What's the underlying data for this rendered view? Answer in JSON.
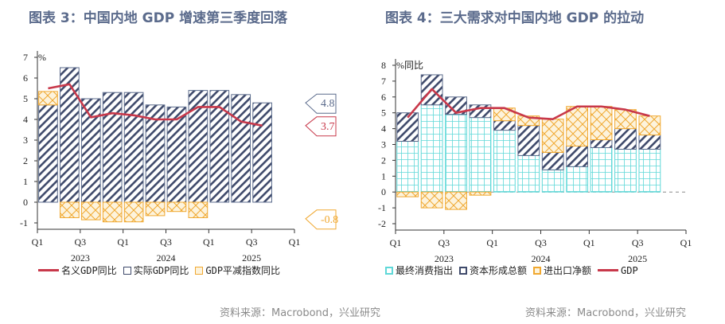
{
  "titles": {
    "left": "图表 3：中国内地 GDP 增速第三季度回落",
    "right": "图表 4：三大需求对中国内地 GDP 的拉动"
  },
  "sources": {
    "left": "资料来源：Macrobond，兴业研究",
    "right": "资料来源：Macrobond，兴业研究"
  },
  "colors": {
    "line": "#c8384a",
    "navy": "#3f4a6b",
    "orange": "#f0a830",
    "cyan": "#5fd8d8"
  },
  "chart_data": [
    {
      "type": "bar",
      "unit_label": "%",
      "ylim": [
        -1,
        7
      ],
      "yticks": [
        -1,
        0,
        1,
        2,
        3,
        4,
        5,
        6,
        7
      ],
      "x_tick_labels": [
        "Q1",
        "Q3",
        "Q1",
        "Q3",
        "Q1",
        "Q3",
        "Q1"
      ],
      "year_labels": [
        "2023",
        "2024",
        "2025"
      ],
      "categories": [
        "2023Q1",
        "2023Q2",
        "2023Q3",
        "2023Q4",
        "2024Q1",
        "2024Q2",
        "2024Q3",
        "2024Q4",
        "2025Q1",
        "2025Q2",
        "2025Q3"
      ],
      "series": [
        {
          "name": "名义GDP同比",
          "kind": "line",
          "values": [
            5.5,
            5.7,
            4.1,
            4.3,
            4.2,
            4.0,
            4.0,
            4.6,
            4.6,
            3.9,
            3.7
          ]
        },
        {
          "name": "实际GDP同比",
          "kind": "bar",
          "values": [
            4.7,
            6.5,
            5.0,
            5.3,
            5.3,
            4.7,
            4.6,
            5.4,
            5.4,
            5.2,
            4.8
          ]
        },
        {
          "name": "GDP平减指数同比",
          "kind": "bar",
          "values": [
            0.65,
            -0.75,
            -0.85,
            -0.95,
            -0.95,
            -0.65,
            -0.45,
            -0.75,
            null,
            null,
            null
          ]
        }
      ],
      "callouts": [
        "4.8",
        "3.7",
        "-0.8"
      ]
    },
    {
      "type": "bar",
      "unit_label": "%同比",
      "ylim": [
        -2,
        8
      ],
      "yticks": [
        -2,
        -1,
        0,
        1,
        2,
        3,
        4,
        5,
        6,
        7,
        8
      ],
      "x_tick_labels": [
        "Q1",
        "Q3",
        "Q1",
        "Q3",
        "Q1",
        "Q3",
        "Q1"
      ],
      "year_labels": [
        "2023",
        "2024",
        "2025"
      ],
      "categories": [
        "2023Q1",
        "2023Q2",
        "2023Q3",
        "2023Q4",
        "2024Q1",
        "2024Q2",
        "2024Q3",
        "2024Q4",
        "2025Q1",
        "2025Q2",
        "2025Q3"
      ],
      "series": [
        {
          "name": "最终消费指出",
          "kind": "bar",
          "values": [
            3.2,
            5.5,
            4.9,
            4.7,
            3.9,
            2.3,
            1.4,
            1.6,
            2.8,
            2.7,
            2.7
          ]
        },
        {
          "name": "资本形成总额",
          "kind": "bar",
          "values": [
            1.8,
            1.9,
            1.1,
            0.8,
            0.6,
            1.9,
            1.1,
            1.3,
            0.5,
            1.3,
            0.9
          ]
        },
        {
          "name": "进出口净额",
          "kind": "bar",
          "values": [
            -0.3,
            -1.0,
            -1.1,
            -0.2,
            0.8,
            0.6,
            2.1,
            2.5,
            2.1,
            1.2,
            1.2
          ]
        },
        {
          "name": "GDP",
          "kind": "line",
          "values": [
            4.7,
            6.5,
            5.0,
            5.3,
            5.3,
            4.7,
            4.6,
            5.4,
            5.4,
            5.2,
            4.8
          ]
        }
      ]
    }
  ]
}
